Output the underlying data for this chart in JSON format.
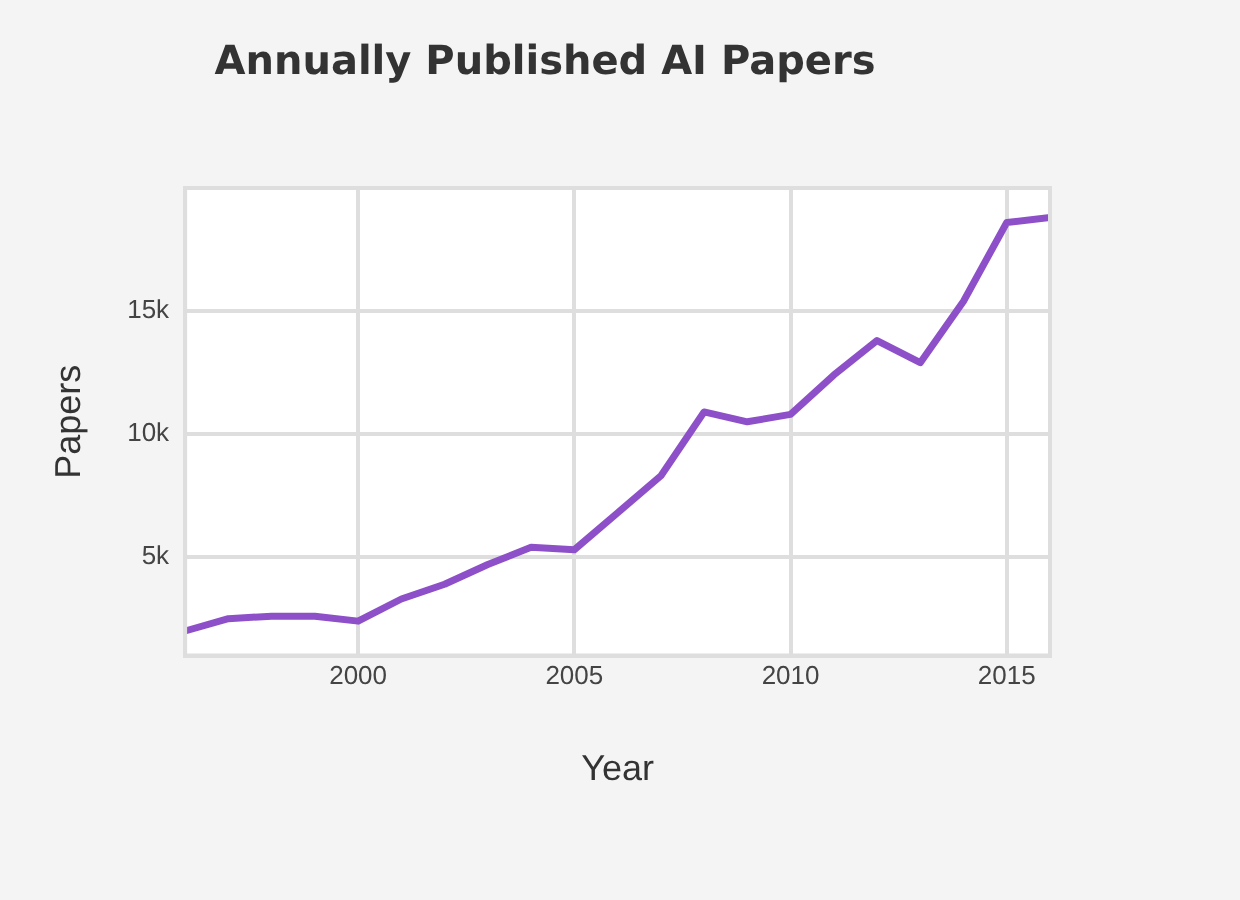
{
  "chart_data": {
    "type": "line",
    "title": "Annually Published AI Papers",
    "xlabel": "Year",
    "ylabel": "Papers",
    "x": [
      1996,
      1997,
      1998,
      1999,
      2000,
      2001,
      2002,
      2003,
      2004,
      2005,
      2006,
      2007,
      2008,
      2009,
      2010,
      2011,
      2012,
      2013,
      2014,
      2015,
      2016
    ],
    "series": [
      {
        "color": "#8e50c8",
        "values": [
          2000,
          2500,
          2600,
          2600,
          2400,
          3300,
          3900,
          4700,
          5400,
          5300,
          6800,
          8300,
          10900,
          10500,
          10800,
          12400,
          13800,
          12900,
          15400,
          18600,
          18800
        ]
      }
    ],
    "xlim": [
      1996,
      2016
    ],
    "xticks": [
      2000,
      2005,
      2010,
      2015
    ],
    "ylim": [
      1000,
      20000
    ],
    "yticks": [
      {
        "value": 5000,
        "label": "5k"
      },
      {
        "value": 10000,
        "label": "10k"
      },
      {
        "value": 15000,
        "label": "15k"
      }
    ],
    "grid": true,
    "legend": false,
    "marker": "none",
    "line_style": "solid"
  }
}
